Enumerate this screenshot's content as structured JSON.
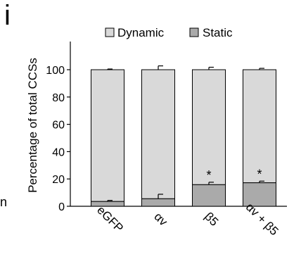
{
  "panel_letter": "i",
  "stray_text": "n",
  "colors": {
    "dynamic": "#d9d9d9",
    "static": "#aaaaaa",
    "axis": "#000000"
  },
  "chart_data": {
    "type": "bar",
    "stacked": true,
    "categories": [
      "eGFP",
      "αv",
      "β5",
      "αv + β5"
    ],
    "series": [
      {
        "name": "Static",
        "values": [
          3.5,
          5.5,
          15.8,
          17.2
        ],
        "errors": [
          0.8,
          3.3,
          1.8,
          1.2
        ]
      },
      {
        "name": "Dynamic",
        "values": [
          96.5,
          94.5,
          84.2,
          82.8
        ],
        "errors": [
          0.5,
          2.8,
          1.8,
          1.0
        ]
      }
    ],
    "ylabel": "Percentage of total CCSs",
    "xlabel": "",
    "ylim": [
      0,
      100
    ],
    "yticks": [
      0,
      20,
      40,
      60,
      80,
      100
    ],
    "annotations": [
      {
        "category": "β5",
        "text": "*"
      },
      {
        "category": "αv + β5",
        "text": "*"
      }
    ],
    "legend": {
      "placement": "top",
      "items": [
        "Dynamic",
        "Static"
      ]
    },
    "grid": false
  }
}
